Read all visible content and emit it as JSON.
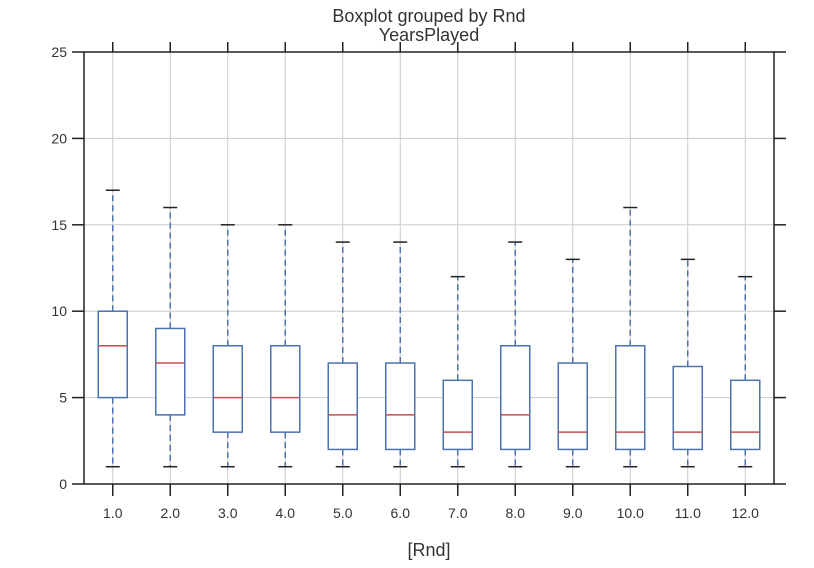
{
  "chart_data": {
    "type": "boxplot",
    "suptitle": "Boxplot grouped by Rnd",
    "title": "YearsPlayed",
    "xlabel": "[Rnd]",
    "ylabel": "",
    "ylim": [
      0,
      25
    ],
    "yticks": [
      "0",
      "5",
      "10",
      "15",
      "20",
      "25"
    ],
    "grid": true,
    "categories": [
      "1.0",
      "2.0",
      "3.0",
      "4.0",
      "5.0",
      "6.0",
      "7.0",
      "8.0",
      "9.0",
      "10.0",
      "11.0",
      "12.0"
    ],
    "boxes": [
      {
        "whisker_low": 1,
        "q1": 5,
        "median": 8,
        "q3": 10,
        "whisker_high": 17
      },
      {
        "whisker_low": 1,
        "q1": 4,
        "median": 7,
        "q3": 9,
        "whisker_high": 16
      },
      {
        "whisker_low": 1,
        "q1": 3,
        "median": 5,
        "q3": 8,
        "whisker_high": 15
      },
      {
        "whisker_low": 1,
        "q1": 3,
        "median": 5,
        "q3": 8,
        "whisker_high": 15
      },
      {
        "whisker_low": 1,
        "q1": 2,
        "median": 4,
        "q3": 7,
        "whisker_high": 14
      },
      {
        "whisker_low": 1,
        "q1": 2,
        "median": 4,
        "q3": 7,
        "whisker_high": 14
      },
      {
        "whisker_low": 1,
        "q1": 2,
        "median": 3,
        "q3": 6,
        "whisker_high": 12
      },
      {
        "whisker_low": 1,
        "q1": 2,
        "median": 4,
        "q3": 8,
        "whisker_high": 14
      },
      {
        "whisker_low": 1,
        "q1": 2,
        "median": 3,
        "q3": 7,
        "whisker_high": 13
      },
      {
        "whisker_low": 1,
        "q1": 2,
        "median": 3,
        "q3": 8,
        "whisker_high": 16
      },
      {
        "whisker_low": 1,
        "q1": 2,
        "median": 3,
        "q3": 6.8,
        "whisker_high": 13
      },
      {
        "whisker_low": 1,
        "q1": 2,
        "median": 3,
        "q3": 6,
        "whisker_high": 12
      }
    ],
    "colors": {
      "box": "#4c72b0",
      "median": "#c44e52",
      "cap": "#222222",
      "grid": "#cccccc",
      "axis": "#222222"
    }
  }
}
